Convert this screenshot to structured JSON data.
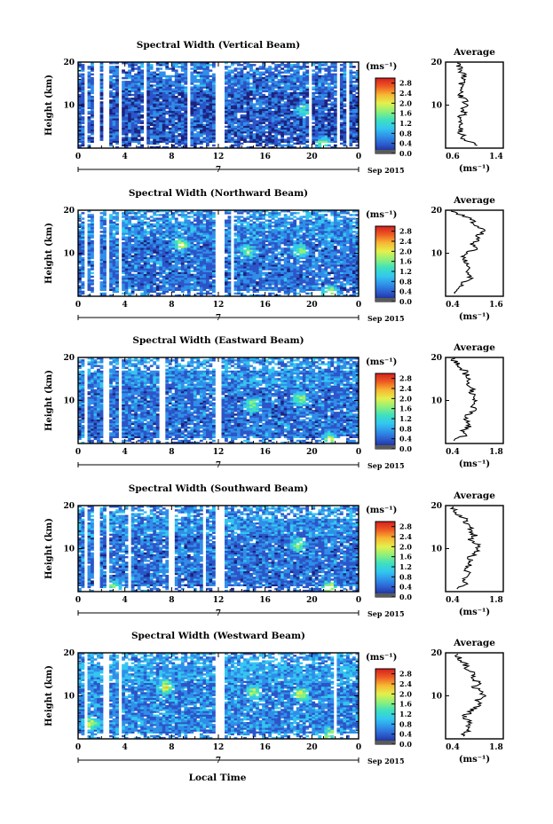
{
  "figure": {
    "xlabel": "Local Time",
    "date_label": "Sep 2015",
    "day_label": "7",
    "colorbar_unit": "(ms⁻¹)",
    "colorbar_ticks": [
      "2.8",
      "2.4",
      "2.0",
      "1.6",
      "1.2",
      "0.8",
      "0.4",
      "0.0"
    ],
    "colorbar_range": [
      0.0,
      3.0
    ],
    "colormap": [
      "#1a237e",
      "#2b55c8",
      "#2f8ee8",
      "#33c6f0",
      "#3de0c0",
      "#8ef07a",
      "#e4f04c",
      "#f7b733",
      "#ee5b22",
      "#d41f1f"
    ],
    "average_title": "Average",
    "average_xlabel": "(ms⁻¹)"
  },
  "chart_data": [
    {
      "type": "heatmap",
      "title": "Spectral Width (Vertical Beam)",
      "xlabel": "Local Time",
      "ylabel": "Height (km)",
      "xlim": [
        0,
        24
      ],
      "ylim": [
        0,
        20
      ],
      "x_ticks": [
        "0",
        "4",
        "8",
        "12",
        "16",
        "20",
        "0"
      ],
      "y_ticks": [
        "10",
        "20"
      ],
      "base_level": 0.45,
      "gap_times": [
        0.7,
        1.6,
        2.4,
        3.6,
        5.8,
        9.5,
        12.0,
        12.3,
        19.8,
        22.2,
        23.0
      ],
      "hotspots": [
        [
          19.2,
          9.0,
          1.2
        ],
        [
          21.0,
          1.0,
          1.4
        ]
      ],
      "profile": {
        "title": "Average",
        "xlabel": "(ms⁻¹)",
        "x_ticks": [
          "0.6",
          "1.4"
        ],
        "xlim": [
          0.4,
          1.6
        ],
        "y_ticks": [
          "10",
          "20"
        ],
        "ylim": [
          0,
          20
        ],
        "heights": [
          1,
          2,
          3,
          4,
          5,
          6,
          7,
          8,
          9,
          10,
          11,
          12,
          13,
          14,
          15,
          16,
          17,
          18,
          19,
          20
        ],
        "values": [
          1.0,
          0.8,
          0.75,
          0.7,
          0.72,
          0.68,
          0.7,
          0.78,
          0.75,
          0.85,
          0.8,
          0.72,
          0.75,
          0.7,
          0.72,
          0.78,
          0.82,
          0.7,
          0.68,
          0.72
        ]
      }
    },
    {
      "type": "heatmap",
      "title": "Spectral Width (Northward Beam)",
      "xlabel": "Local Time",
      "ylabel": "Height (km)",
      "xlim": [
        0,
        24
      ],
      "ylim": [
        0,
        20
      ],
      "x_ticks": [
        "0",
        "4",
        "8",
        "12",
        "16",
        "20",
        "0"
      ],
      "y_ticks": [
        "10",
        "20"
      ],
      "base_level": 0.6,
      "gap_times": [
        0.6,
        1.6,
        2.6,
        3.5,
        12.0,
        12.4,
        13.1
      ],
      "hotspots": [
        [
          8.8,
          12.0,
          1.2
        ],
        [
          14.5,
          10.5,
          1.0
        ],
        [
          19.0,
          10.5,
          1.3
        ],
        [
          21.5,
          1.0,
          1.5
        ]
      ],
      "profile": {
        "title": "Average",
        "xlabel": "(ms⁻¹)",
        "x_ticks": [
          "0.4",
          "1.6"
        ],
        "xlim": [
          0.4,
          1.6
        ],
        "y_ticks": [
          "10",
          "20"
        ],
        "ylim": [
          0,
          20
        ],
        "heights": [
          1,
          2,
          3,
          4,
          5,
          6,
          7,
          8,
          9,
          10,
          11,
          12,
          13,
          14,
          15,
          16,
          17,
          18,
          19,
          20
        ],
        "values": [
          0.6,
          0.72,
          0.68,
          0.95,
          0.85,
          0.8,
          0.9,
          0.82,
          0.78,
          0.85,
          1.0,
          0.95,
          1.1,
          1.05,
          1.2,
          1.1,
          1.0,
          0.9,
          0.7,
          0.55
        ]
      }
    },
    {
      "type": "heatmap",
      "title": "Spectral Width (Eastward Beam)",
      "xlabel": "Local Time",
      "ylabel": "Height (km)",
      "xlim": [
        0,
        24
      ],
      "ylim": [
        0,
        20
      ],
      "x_ticks": [
        "0",
        "4",
        "8",
        "12",
        "16",
        "20",
        "0"
      ],
      "y_ticks": [
        "10",
        "20"
      ],
      "base_level": 0.6,
      "gap_times": [
        0.7,
        2.4,
        3.5,
        7.2,
        12.0
      ],
      "hotspots": [
        [
          15.0,
          9.0,
          1.2
        ],
        [
          19.0,
          10.5,
          1.4
        ],
        [
          21.5,
          1.0,
          1.4
        ]
      ],
      "profile": {
        "title": "Average",
        "xlabel": "(ms⁻¹)",
        "x_ticks": [
          "0.4",
          "1.8"
        ],
        "xlim": [
          0.4,
          1.8
        ],
        "y_ticks": [
          "10",
          "20"
        ],
        "ylim": [
          0,
          20
        ],
        "heights": [
          1,
          2,
          3,
          4,
          5,
          6,
          7,
          8,
          9,
          10,
          11,
          12,
          13,
          14,
          15,
          16,
          17,
          18,
          19,
          20
        ],
        "values": [
          0.65,
          0.9,
          0.8,
          1.0,
          0.95,
          0.9,
          1.0,
          1.1,
          1.05,
          1.15,
          1.1,
          1.0,
          1.05,
          0.95,
          1.0,
          0.9,
          0.85,
          0.75,
          0.65,
          0.55
        ]
      }
    },
    {
      "type": "heatmap",
      "title": "Spectral Width (Southward Beam)",
      "xlabel": "Local Time",
      "ylabel": "Height (km)",
      "xlim": [
        0,
        24
      ],
      "ylim": [
        0,
        20
      ],
      "x_ticks": [
        "0",
        "4",
        "8",
        "12",
        "16",
        "20",
        "0"
      ],
      "y_ticks": [
        "10",
        "20"
      ],
      "base_level": 0.6,
      "gap_times": [
        0.7,
        1.6,
        2.5,
        4.3,
        8.0,
        10.8,
        12.0,
        12.4
      ],
      "hotspots": [
        [
          18.8,
          11.0,
          1.2
        ],
        [
          21.5,
          1.0,
          1.4
        ],
        [
          3.2,
          1.0,
          1.2
        ]
      ],
      "profile": {
        "title": "Average",
        "xlabel": "(ms⁻¹)",
        "x_ticks": [
          "0.4",
          "1.8"
        ],
        "xlim": [
          0.4,
          1.8
        ],
        "y_ticks": [
          "10",
          "20"
        ],
        "ylim": [
          0,
          20
        ],
        "heights": [
          1,
          2,
          3,
          4,
          5,
          6,
          7,
          8,
          9,
          10,
          11,
          12,
          13,
          14,
          15,
          16,
          17,
          18,
          19,
          20
        ],
        "values": [
          0.7,
          0.9,
          0.85,
          1.0,
          0.9,
          0.95,
          1.05,
          1.0,
          1.1,
          1.2,
          1.15,
          1.0,
          1.1,
          1.0,
          1.05,
          0.9,
          0.85,
          0.7,
          0.6,
          0.55
        ]
      }
    },
    {
      "type": "heatmap",
      "title": "Spectral Width (Westward Beam)",
      "xlabel": "Local Time",
      "ylabel": "Height (km)",
      "xlim": [
        0,
        24
      ],
      "ylim": [
        0,
        20
      ],
      "x_ticks": [
        "0",
        "4",
        "8",
        "12",
        "16",
        "20",
        "0"
      ],
      "y_ticks": [
        "10",
        "20"
      ],
      "base_level": 0.7,
      "gap_times": [
        0.7,
        2.4,
        3.5,
        12.0,
        12.4,
        22.0
      ],
      "hotspots": [
        [
          7.5,
          12.0,
          1.4
        ],
        [
          15.0,
          11.0,
          1.2
        ],
        [
          19.0,
          10.5,
          1.4
        ],
        [
          1.0,
          3.5,
          1.4
        ],
        [
          21.5,
          1.0,
          1.3
        ]
      ],
      "profile": {
        "title": "Average",
        "xlabel": "(ms⁻¹)",
        "x_ticks": [
          "0.4",
          "1.8"
        ],
        "xlim": [
          0.4,
          1.8
        ],
        "y_ticks": [
          "10",
          "20"
        ],
        "ylim": [
          0,
          20
        ],
        "heights": [
          1,
          2,
          3,
          4,
          5,
          6,
          7,
          8,
          9,
          10,
          11,
          12,
          13,
          14,
          15,
          16,
          17,
          18,
          19,
          20
        ],
        "values": [
          0.8,
          1.0,
          0.9,
          1.0,
          0.85,
          0.95,
          1.1,
          1.2,
          1.15,
          1.3,
          1.25,
          1.1,
          1.2,
          1.05,
          1.1,
          0.95,
          0.9,
          0.8,
          0.7,
          0.6
        ]
      }
    }
  ]
}
